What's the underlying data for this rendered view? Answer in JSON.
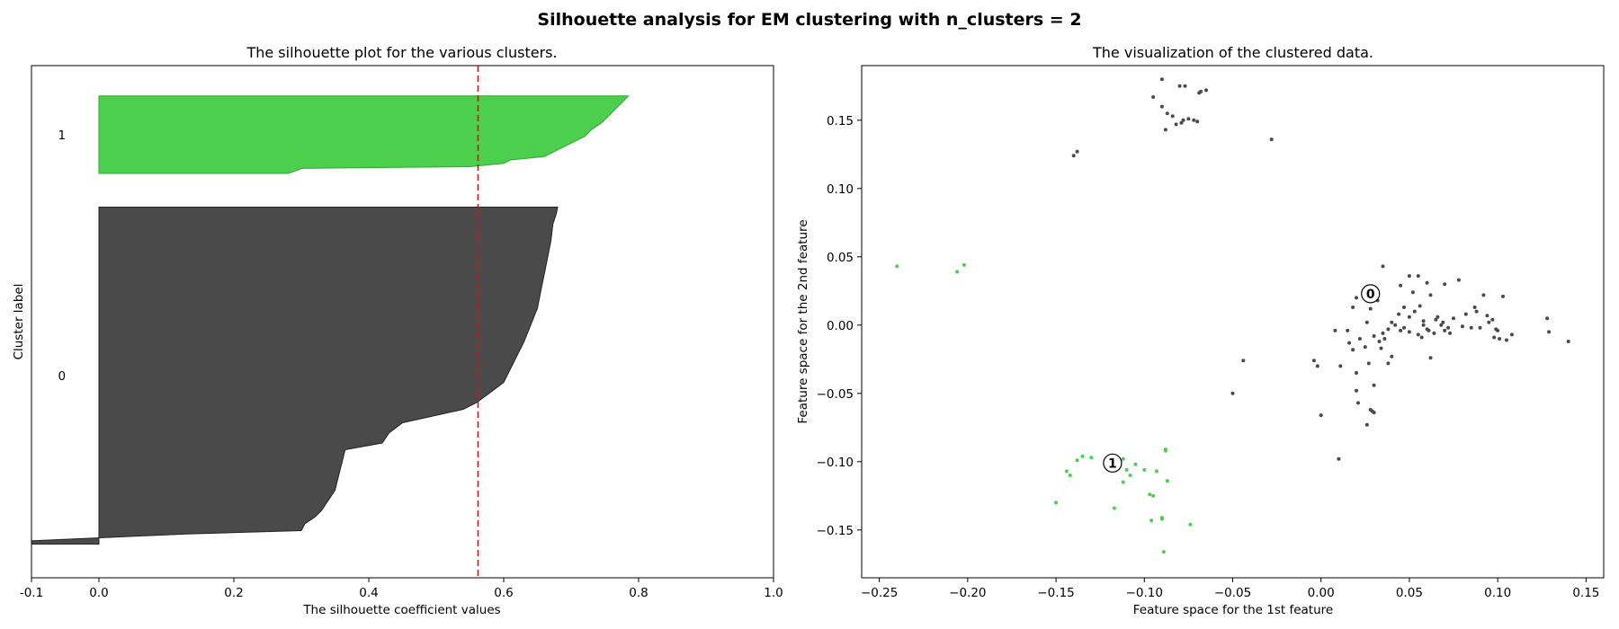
{
  "suptitle": "Silhouette analysis for EM clustering with n_clusters = 2",
  "colors": {
    "cluster_0": "#4a4a4a",
    "cluster_1": "#4ccf4c",
    "cluster_1_edge": "#2ea82e",
    "mean_line": "#ff0000",
    "center_marker_edge": "#000000"
  },
  "chart_data": [
    {
      "type": "area",
      "title": "The silhouette plot for the various clusters.",
      "xlabel": "The silhouette coefficient values",
      "ylabel": "Cluster label",
      "xlim": [
        -0.1,
        1.0
      ],
      "ylim": [
        0,
        152
      ],
      "xticks": [
        "-0.1",
        "0.0",
        "0.2",
        "0.4",
        "0.6",
        "0.8",
        "1.0"
      ],
      "xtick_values": [
        -0.1,
        0.0,
        0.2,
        0.4,
        0.6,
        0.8,
        1.0
      ],
      "grid": false,
      "average_silhouette": 0.562,
      "clusters": [
        {
          "label": "0",
          "y_lower": 10,
          "y_upper": 110,
          "profile": [
            [
              0.0,
              -0.1
            ],
            [
              1.0,
              -0.1
            ],
            [
              3.0,
              0.13
            ],
            [
              4.0,
              0.3
            ],
            [
              6.0,
              0.305
            ],
            [
              8.0,
              0.32
            ],
            [
              10.0,
              0.33
            ],
            [
              13.0,
              0.34
            ],
            [
              16.0,
              0.35
            ],
            [
              20.0,
              0.355
            ],
            [
              24.0,
              0.36
            ],
            [
              28.0,
              0.365
            ],
            [
              30.0,
              0.42
            ],
            [
              33.0,
              0.43
            ],
            [
              36.0,
              0.45
            ],
            [
              40.0,
              0.54
            ],
            [
              42.0,
              0.56
            ],
            [
              45.0,
              0.58
            ],
            [
              48.0,
              0.6
            ],
            [
              52.0,
              0.61
            ],
            [
              56.0,
              0.62
            ],
            [
              60.0,
              0.63
            ],
            [
              65.0,
              0.64
            ],
            [
              70.0,
              0.65
            ],
            [
              75.0,
              0.655
            ],
            [
              80.0,
              0.66
            ],
            [
              85.0,
              0.665
            ],
            [
              90.0,
              0.67
            ],
            [
              95.0,
              0.673
            ],
            [
              98.0,
              0.678
            ],
            [
              100.0,
              0.68
            ]
          ]
        },
        {
          "label": "1",
          "y_lower": 120,
          "y_upper": 143,
          "profile": [
            [
              0.0,
              0.28
            ],
            [
              1.0,
              0.295
            ],
            [
              1.5,
              0.3
            ],
            [
              2.0,
              0.55
            ],
            [
              3.0,
              0.6
            ],
            [
              4.0,
              0.61
            ],
            [
              5.0,
              0.66
            ],
            [
              7.0,
              0.68
            ],
            [
              9.0,
              0.7
            ],
            [
              11.0,
              0.72
            ],
            [
              13.0,
              0.73
            ],
            [
              15.0,
              0.745
            ],
            [
              17.0,
              0.755
            ],
            [
              19.0,
              0.765
            ],
            [
              21.0,
              0.775
            ],
            [
              23.0,
              0.785
            ]
          ]
        }
      ]
    },
    {
      "type": "scatter",
      "title": "The visualization of the clustered data.",
      "xlabel": "Feature space for the 1st feature",
      "ylabel": "Feature space for the 2nd feature",
      "xlim": [
        -0.26,
        0.16
      ],
      "ylim": [
        -0.185,
        0.19
      ],
      "xticks": [
        "−0.25",
        "−0.20",
        "−0.15",
        "−0.10",
        "−0.05",
        "0.00",
        "0.05",
        "0.10",
        "0.15"
      ],
      "xtick_values": [
        -0.25,
        -0.2,
        -0.15,
        -0.1,
        -0.05,
        0.0,
        0.05,
        0.1,
        0.15
      ],
      "yticks": [
        "−0.15",
        "−0.10",
        "−0.05",
        "0.00",
        "0.05",
        "0.10",
        "0.15"
      ],
      "ytick_values": [
        -0.15,
        -0.1,
        -0.05,
        0.0,
        0.05,
        0.1,
        0.15
      ],
      "grid": false,
      "centers": [
        {
          "label": "0",
          "x": 0.028,
          "y": 0.023
        },
        {
          "label": "1",
          "x": -0.118,
          "y": -0.101
        }
      ],
      "series": [
        {
          "cluster": 0,
          "points": [
            [
              -0.09,
              0.18
            ],
            [
              -0.095,
              0.167
            ],
            [
              -0.09,
              0.16
            ],
            [
              -0.087,
              0.155
            ],
            [
              -0.084,
              0.153
            ],
            [
              -0.08,
              0.175
            ],
            [
              -0.077,
              0.175
            ],
            [
              -0.072,
              0.15
            ],
            [
              -0.069,
              0.17
            ],
            [
              -0.065,
              0.172
            ],
            [
              -0.082,
              0.147
            ],
            [
              -0.078,
              0.15
            ],
            [
              -0.088,
              0.143
            ],
            [
              -0.07,
              0.149
            ],
            [
              -0.075,
              0.151
            ],
            [
              -0.14,
              0.124
            ],
            [
              -0.138,
              0.127
            ],
            [
              -0.028,
              0.136
            ],
            [
              -0.068,
              0.171
            ],
            [
              -0.079,
              0.148
            ],
            [
              -0.05,
              -0.05
            ],
            [
              -0.044,
              -0.026
            ],
            [
              -0.004,
              -0.026
            ],
            [
              -0.002,
              -0.03
            ],
            [
              0.0,
              -0.066
            ],
            [
              0.01,
              -0.098
            ],
            [
              0.026,
              -0.073
            ],
            [
              0.028,
              -0.062
            ],
            [
              0.029,
              -0.063
            ],
            [
              0.03,
              -0.064
            ],
            [
              0.02,
              -0.048
            ],
            [
              0.021,
              -0.057
            ],
            [
              0.03,
              -0.044
            ],
            [
              0.011,
              -0.03
            ],
            [
              0.02,
              -0.035
            ],
            [
              0.025,
              -0.016
            ],
            [
              0.027,
              -0.028
            ],
            [
              0.035,
              -0.006
            ],
            [
              0.036,
              -0.01
            ],
            [
              0.038,
              -0.028
            ],
            [
              0.04,
              -0.023
            ],
            [
              0.045,
              -0.004
            ],
            [
              0.05,
              -0.005
            ],
            [
              0.055,
              -0.007
            ],
            [
              0.057,
              -0.009
            ],
            [
              0.06,
              -0.003
            ],
            [
              0.062,
              -0.024
            ],
            [
              0.065,
              0.004
            ],
            [
              0.068,
              0.0
            ],
            [
              0.07,
              -0.004
            ],
            [
              0.072,
              -0.002
            ],
            [
              0.075,
              0.005
            ],
            [
              0.078,
              0.033
            ],
            [
              0.08,
              -0.001
            ],
            [
              0.085,
              -0.002
            ],
            [
              0.088,
              0.01
            ],
            [
              0.09,
              -0.002
            ],
            [
              0.092,
              0.022
            ],
            [
              0.095,
              0.002
            ],
            [
              0.098,
              -0.009
            ],
            [
              0.1,
              -0.004
            ],
            [
              0.103,
              0.021
            ],
            [
              0.105,
              -0.011
            ],
            [
              0.108,
              -0.007
            ],
            [
              0.128,
              0.005
            ],
            [
              0.129,
              -0.005
            ],
            [
              0.14,
              -0.012
            ],
            [
              0.035,
              0.043
            ],
            [
              0.05,
              0.036
            ],
            [
              0.055,
              0.036
            ],
            [
              0.045,
              0.029
            ],
            [
              0.052,
              0.024
            ],
            [
              0.06,
              0.031
            ],
            [
              0.062,
              0.022
            ],
            [
              0.07,
              0.03
            ],
            [
              0.032,
              0.018
            ],
            [
              0.028,
              0.012
            ],
            [
              0.018,
              0.013
            ],
            [
              0.02,
              0.02
            ],
            [
              0.015,
              -0.004
            ],
            [
              0.018,
              -0.018
            ],
            [
              0.022,
              -0.01
            ],
            [
              0.03,
              -0.008
            ],
            [
              0.033,
              -0.012
            ],
            [
              0.038,
              -0.003
            ],
            [
              0.042,
              0.0
            ],
            [
              0.044,
              0.008
            ],
            [
              0.047,
              -0.002
            ],
            [
              0.05,
              0.006
            ],
            [
              0.053,
              0.01
            ],
            [
              0.056,
              0.014
            ],
            [
              0.058,
              0.003
            ],
            [
              0.061,
              -0.004
            ],
            [
              0.064,
              -0.006
            ],
            [
              0.066,
              0.006
            ],
            [
              0.069,
              0.002
            ],
            [
              0.073,
              -0.006
            ],
            [
              0.082,
              0.008
            ],
            [
              0.087,
              0.013
            ],
            [
              0.094,
              0.007
            ],
            [
              0.097,
              0.004
            ],
            [
              0.099,
              -0.003
            ],
            [
              0.101,
              -0.01
            ],
            [
              0.04,
              0.002
            ],
            [
              0.016,
              -0.013
            ],
            [
              0.008,
              -0.004
            ],
            [
              0.026,
              0.002
            ],
            [
              0.034,
              -0.017
            ],
            [
              0.047,
              0.013
            ],
            [
              0.058,
              0.0
            ]
          ]
        },
        {
          "cluster": 1,
          "points": [
            [
              -0.24,
              0.043
            ],
            [
              -0.206,
              0.039
            ],
            [
              -0.202,
              0.044
            ],
            [
              -0.15,
              -0.13
            ],
            [
              -0.144,
              -0.107
            ],
            [
              -0.142,
              -0.11
            ],
            [
              -0.138,
              -0.099
            ],
            [
              -0.135,
              -0.096
            ],
            [
              -0.13,
              -0.097
            ],
            [
              -0.117,
              -0.134
            ],
            [
              -0.112,
              -0.098
            ],
            [
              -0.11,
              -0.106
            ],
            [
              -0.108,
              -0.11
            ],
            [
              -0.105,
              -0.102
            ],
            [
              -0.112,
              -0.115
            ],
            [
              -0.1,
              -0.106
            ],
            [
              -0.097,
              -0.124
            ],
            [
              -0.095,
              -0.125
            ],
            [
              -0.093,
              -0.107
            ],
            [
              -0.09,
              -0.142
            ],
            [
              -0.088,
              -0.091
            ],
            [
              -0.087,
              -0.114
            ],
            [
              -0.089,
              -0.166
            ],
            [
              -0.096,
              -0.143
            ],
            [
              -0.074,
              -0.146
            ],
            [
              -0.088,
              -0.092
            ],
            [
              -0.09,
              -0.141
            ]
          ]
        }
      ]
    }
  ]
}
